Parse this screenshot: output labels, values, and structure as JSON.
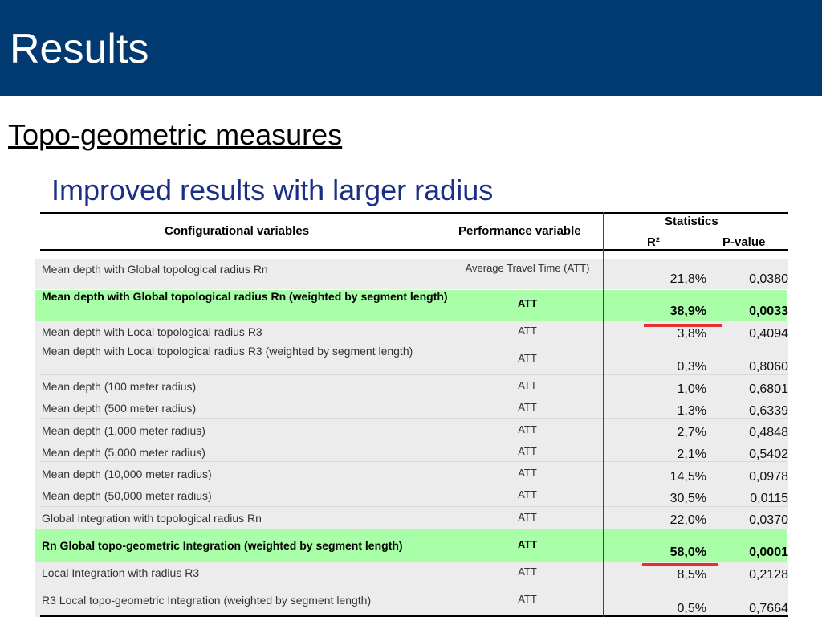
{
  "slide": {
    "title": "Results",
    "subtitle": "Topo-geometric measures",
    "heading": "Improved results with larger radius"
  },
  "table": {
    "headers": {
      "config": "Configurational variables",
      "performance": "Performance variable",
      "statistics": "Statistics",
      "r2": "R²",
      "pvalue": "P-value"
    },
    "rows": [
      {
        "config": "Mean depth with Global topological radius Rn",
        "perf": "Average Travel Time (ATT)",
        "r2": "21,8%",
        "p": "0,0380",
        "bold": false
      },
      {
        "config": "Mean depth with Global topological radius Rn (weighted by segment length)",
        "perf": "ATT",
        "r2": "38,9%",
        "p": "0,0033",
        "bold": true
      },
      {
        "config": "Mean depth with Local topological radius R3",
        "perf": "ATT",
        "r2": "3,8%",
        "p": "0,4094",
        "bold": false
      },
      {
        "config": "Mean depth with Local topological radius R3 (weighted by segment length)",
        "perf": "ATT",
        "r2": "0,3%",
        "p": "0,8060",
        "bold": false
      },
      {
        "config": "Mean depth (100 meter radius)",
        "perf": "ATT",
        "r2": "1,0%",
        "p": "0,6801",
        "bold": false
      },
      {
        "config": "Mean depth (500 meter radius)",
        "perf": "ATT",
        "r2": "1,3%",
        "p": "0,6339",
        "bold": false
      },
      {
        "config": "Mean depth (1,000 meter radius)",
        "perf": "ATT",
        "r2": "2,7%",
        "p": "0,4848",
        "bold": false
      },
      {
        "config": "Mean depth (5,000 meter radius)",
        "perf": "ATT",
        "r2": "2,1%",
        "p": "0,5402",
        "bold": false
      },
      {
        "config": "Mean depth (10,000 meter radius)",
        "perf": "ATT",
        "r2": "14,5%",
        "p": "0,0978",
        "bold": false
      },
      {
        "config": "Mean depth (50,000 meter radius)",
        "perf": "ATT",
        "r2": "30,5%",
        "p": "0,0115",
        "bold": false
      },
      {
        "config": "Global Integration with topological radius Rn",
        "perf": "ATT",
        "r2": "22,0%",
        "p": "0,0370",
        "bold": false
      },
      {
        "config": "Rn Global topo-geometric Integration (weighted by segment length)",
        "perf": "ATT",
        "r2": "58,0%",
        "p": "0,0001",
        "bold": true
      },
      {
        "config": "Local Integration with radius R3",
        "perf": "ATT",
        "r2": "8,5%",
        "p": "0,2128",
        "bold": false
      },
      {
        "config": "R3 Local topo-geometric Integration (weighted by segment length)",
        "perf": "ATT",
        "r2": "0,5%",
        "p": "0,7664",
        "bold": false
      }
    ]
  },
  "colors": {
    "header_bg": "#003a70",
    "highlight": "#99ff99",
    "underline_red": "#e03030",
    "heading_blue": "#1a2f84"
  }
}
